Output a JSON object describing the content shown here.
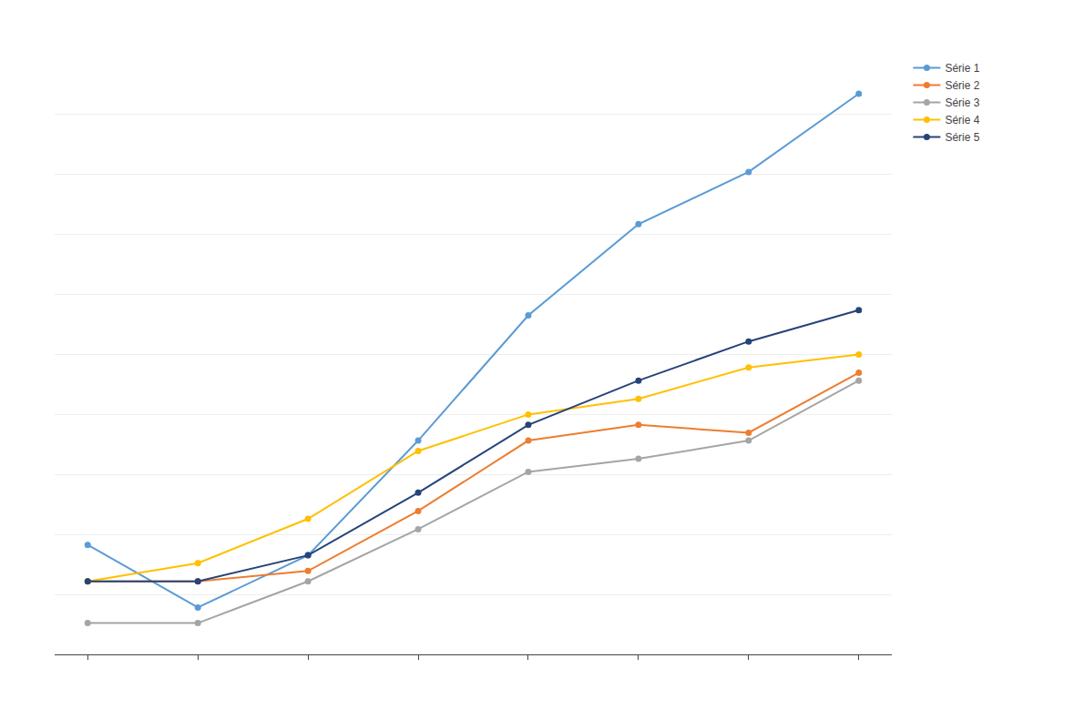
{
  "chart_data": {
    "type": "line",
    "x": [
      1,
      2,
      3,
      4,
      5,
      6,
      7,
      8
    ],
    "series": [
      {
        "name": "Série 1",
        "color": "#5b9bd5",
        "values": [
          4200,
          1800,
          3800,
          8200,
          13000,
          16500,
          18500,
          21500
        ]
      },
      {
        "name": "Série 2",
        "color": "#ed7d31",
        "values": [
          2800,
          2800,
          3200,
          5500,
          8200,
          8800,
          8500,
          10800
        ]
      },
      {
        "name": "Série 3",
        "color": "#a5a5a5",
        "values": [
          1200,
          1200,
          2800,
          4800,
          7000,
          7500,
          8200,
          10500
        ]
      },
      {
        "name": "Série 4",
        "color": "#ffc000",
        "values": [
          2800,
          3500,
          5200,
          7800,
          9200,
          9800,
          11000,
          11500
        ]
      },
      {
        "name": "Série 5",
        "color": "#264478",
        "values": [
          2800,
          2800,
          3800,
          6200,
          8800,
          10500,
          12000,
          13200
        ]
      }
    ],
    "xlim": [
      0.7,
      8.3
    ],
    "ylim": [
      0,
      23000
    ],
    "xticks": [
      1,
      2,
      3,
      4,
      5,
      6,
      7,
      8
    ],
    "yticks": [
      0,
      2300,
      4600,
      6900,
      9200,
      11500,
      13800,
      16100,
      18400,
      20700,
      23000
    ],
    "grid": "y",
    "tick_labels": false,
    "marker": "circle",
    "legend": "right"
  }
}
